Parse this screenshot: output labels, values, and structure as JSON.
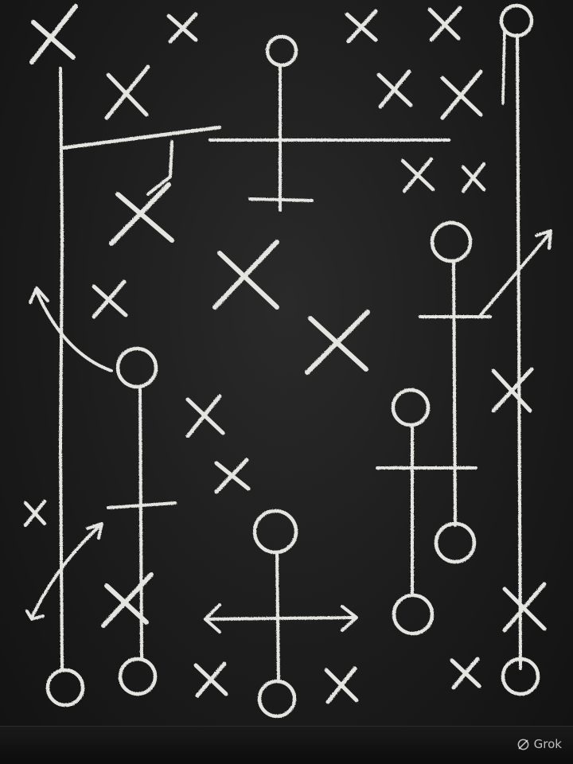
{
  "scene": {
    "description_free": true,
    "background_color": "#1c1c1c",
    "chalk_color": "#e4e4e0",
    "watermark_text": "Grok"
  }
}
